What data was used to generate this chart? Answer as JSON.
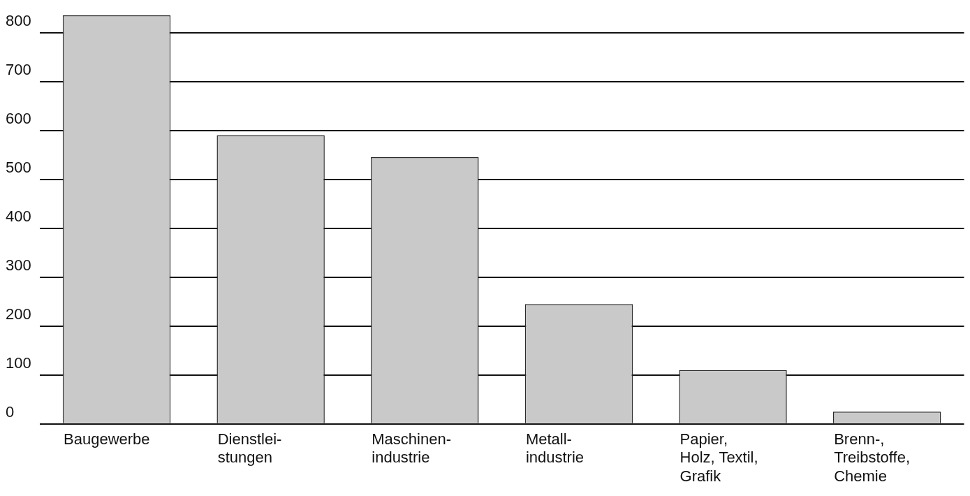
{
  "chart_data": {
    "type": "bar",
    "categories": [
      "Baugewerbe",
      "Dienstlei-\nstungen",
      "Maschinen-\nindustrie",
      "Metall-\nindustrie",
      "Papier,\nHolz, Textil,\nGrafik",
      "Brenn-,\nTreibstoffe,\nChemie"
    ],
    "values": [
      835,
      590,
      545,
      245,
      110,
      25
    ],
    "color": "#c9c9c9",
    "ylim": [
      0,
      835
    ],
    "yticks": [
      0,
      100,
      200,
      300,
      400,
      500,
      600,
      700,
      800
    ],
    "grid": "y",
    "legend": false
  }
}
